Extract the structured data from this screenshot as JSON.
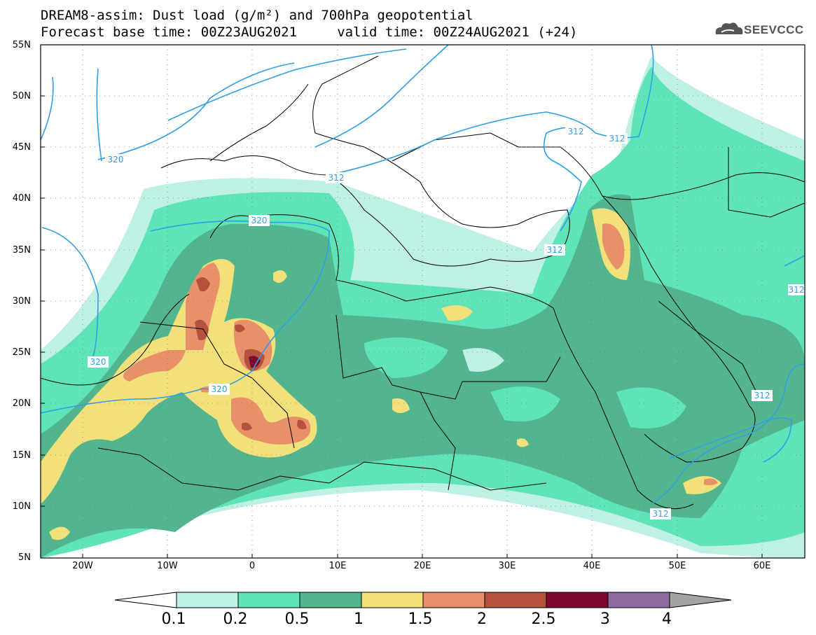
{
  "title": {
    "line1": "DREAM8-assim: Dust load (g/m²) and 700hPa geopotential",
    "line2": "Forecast base time: 00Z23AUG2021     valid time: 00Z24AUG2021 (+24)"
  },
  "logo": {
    "text": "SEEVCCC",
    "icon": "cloud-icon"
  },
  "map": {
    "extent": {
      "lon_min": -25,
      "lon_max": 65,
      "lat_min": 5,
      "lat_max": 55
    },
    "lat_labels": [
      "55N",
      "50N",
      "45N",
      "40N",
      "35N",
      "30N",
      "25N",
      "20N",
      "15N",
      "10N",
      "5N"
    ],
    "lon_labels": [
      "20W",
      "10W",
      "0",
      "10E",
      "20E",
      "30E",
      "40E",
      "50E",
      "60E"
    ],
    "contour_labels": [
      "320",
      "320",
      "320",
      "320",
      "312",
      "312",
      "312",
      "312",
      "312",
      "312",
      "312"
    ]
  },
  "colorbar": {
    "ticks": [
      "0.1",
      "0.2",
      "0.5",
      "1",
      "1.5",
      "2",
      "2.5",
      "3",
      "4"
    ],
    "colors": [
      "#bff0e6",
      "#5fe3b8",
      "#52b58e",
      "#f2e17a",
      "#e8906a",
      "#b5513f",
      "#7d0a2e",
      "#8d6aa0"
    ],
    "over_color": "#a3a3a3",
    "under_color": "#ffffff"
  }
}
